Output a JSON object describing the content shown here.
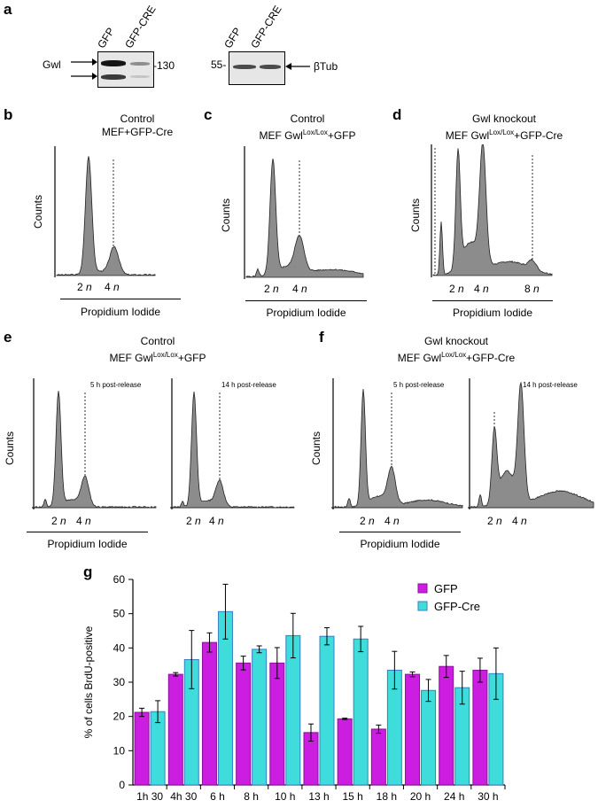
{
  "panel_a": {
    "label": "a",
    "lanes_left": [
      "GFP",
      "GFP-CRE"
    ],
    "lanes_right": [
      "GFP",
      "GFP-CRE"
    ],
    "gwl_label": "Gwl",
    "marker_130": "-130",
    "marker_55": "55-",
    "btub_label": "βTub"
  },
  "panel_b": {
    "label": "b",
    "title_line1": "Control",
    "title_line2": "MEF+GFP-Cre",
    "ylabel": "Counts",
    "x_2n": "2",
    "x_4n": "4",
    "n": "n",
    "xlabel": "Propidium Iodide"
  },
  "panel_c": {
    "label": "c",
    "title_line1": "Control",
    "title_line2_pre": "MEF Gwl",
    "title_line2_sup": "Lox/Lox",
    "title_line2_post": "+GFP",
    "ylabel": "Counts",
    "x_2n": "2",
    "x_4n": "4",
    "n": "n",
    "xlabel": "Propidium Iodide"
  },
  "panel_d": {
    "label": "d",
    "title_line1": "Gwl knockout",
    "title_line2_pre": "MEF Gwl",
    "title_line2_sup": "Lox/Lox",
    "title_line2_post": "+GFP-Cre",
    "ylabel": "Counts",
    "x_2n": "2",
    "x_4n": "4",
    "x_8n": "8",
    "n": "n",
    "xlabel": "Propidium Iodide"
  },
  "panel_e": {
    "label": "e",
    "title_line1": "Control",
    "title_line2_pre": "MEF Gwl",
    "title_line2_sup": "Lox/Lox",
    "title_line2_post": "+GFP",
    "ylabel": "Counts",
    "release_left": "5 h post-release",
    "release_right": "14 h post-release",
    "x_2n": "2",
    "x_4n": "4",
    "n": "n",
    "xlabel": "Propidium Iodide"
  },
  "panel_f": {
    "label": "f",
    "title_line1": "Gwl knockout",
    "title_line2_pre": "MEF Gwl",
    "title_line2_sup": "Lox/Lox",
    "title_line2_post": "+GFP-Cre",
    "ylabel": "Counts",
    "release_left": "5 h post-release",
    "release_right": "14 h post-release",
    "x_2n": "2",
    "x_4n": "4",
    "n": "n",
    "xlabel": "Propidium Iodide"
  },
  "panel_g": {
    "label": "g"
  },
  "colors": {
    "gfp": "#cc1ee0",
    "gfp_cre": "#3fdcdc",
    "histogram_fill": "#8c8c8c"
  },
  "chart_data": {
    "type": "bar",
    "title": "",
    "xlabel": "",
    "ylabel": "% of cells BrdU-positive",
    "ylim": [
      0,
      60
    ],
    "yticks": [
      0,
      10,
      20,
      30,
      40,
      50,
      60
    ],
    "categories": [
      "1h 30",
      "4h 30",
      "6 h",
      "8 h",
      "10 h",
      "13 h",
      "15 h",
      "18 h",
      "20 h",
      "24 h",
      "30 h"
    ],
    "series": [
      {
        "name": "GFP",
        "values": [
          21.2,
          32.3,
          41.6,
          35.6,
          35.6,
          15.3,
          19.3,
          16.3,
          32.3,
          34.6,
          33.5
        ],
        "errors": [
          1.2,
          0.5,
          2.8,
          2.0,
          4.5,
          2.5,
          0.2,
          1.2,
          0.7,
          3.2,
          3.5
        ]
      },
      {
        "name": "GFP-Cre",
        "values": [
          21.4,
          36.6,
          50.6,
          39.6,
          43.6,
          43.4,
          42.6,
          33.5,
          27.6,
          28.4,
          32.5
        ],
        "errors": [
          3.2,
          8.5,
          8.0,
          1.0,
          6.5,
          2.5,
          3.7,
          5.5,
          3.2,
          4.8,
          7.5
        ]
      }
    ],
    "legend": "top-right"
  }
}
